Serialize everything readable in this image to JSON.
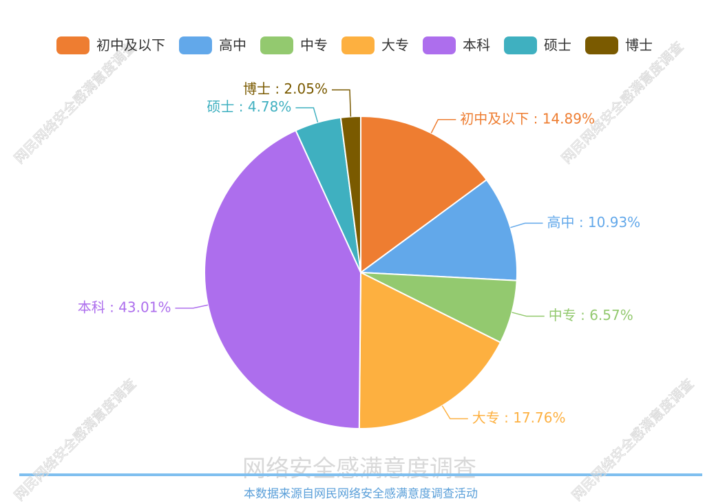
{
  "chart_data": {
    "type": "pie",
    "categories": [
      "初中及以下",
      "高中",
      "中专",
      "大专",
      "本科",
      "硕士",
      "博士"
    ],
    "values": [
      14.89,
      10.93,
      6.57,
      17.76,
      43.01,
      4.78,
      2.05
    ],
    "value_labels": [
      "初中及以下 : 14.89%",
      "高中 : 10.93%",
      "中专 : 6.57%",
      "大专 : 17.76%",
      "本科 : 43.01%",
      "硕士 : 4.78%",
      "博士 : 2.05%"
    ],
    "colors": [
      "#ee7d31",
      "#62a8ea",
      "#93c96f",
      "#fdb040",
      "#ad6eed",
      "#3fb0c0",
      "#7a5a00"
    ],
    "legend": "top",
    "title": "网络安全感满意度调查",
    "source": "本数据来源自网民网络安全感满意度调查活动",
    "watermark": "网民网络安全感满意度调查"
  }
}
